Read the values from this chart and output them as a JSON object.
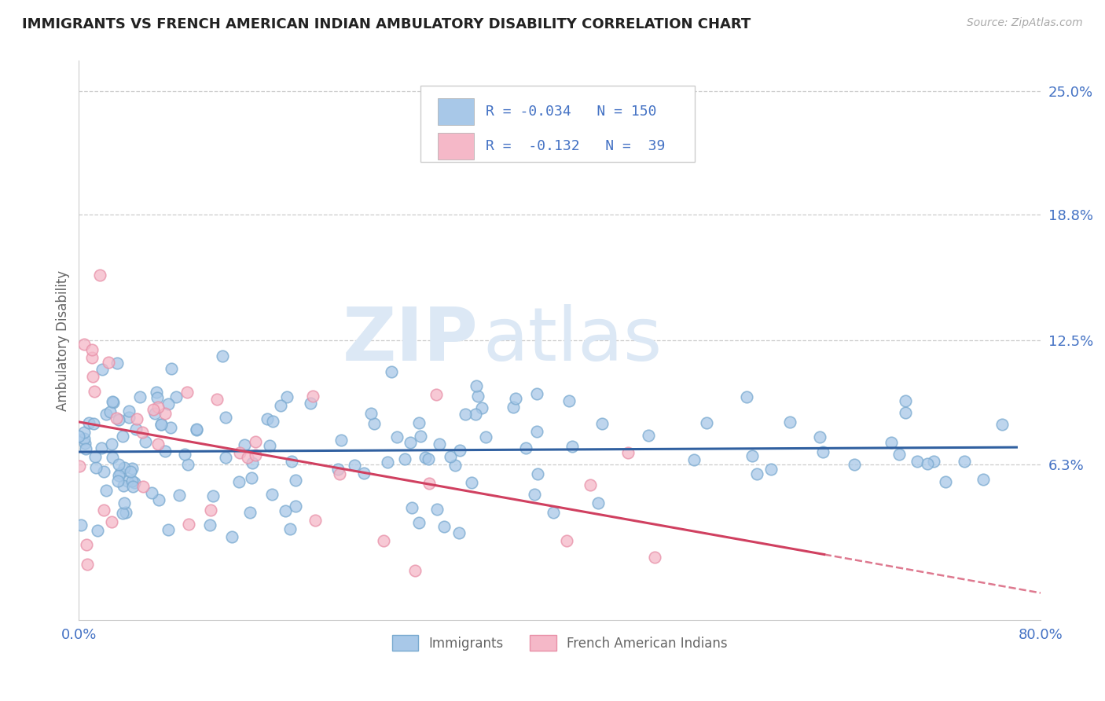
{
  "title": "IMMIGRANTS VS FRENCH AMERICAN INDIAN AMBULATORY DISABILITY CORRELATION CHART",
  "source_text": "Source: ZipAtlas.com",
  "ylabel": "Ambulatory Disability",
  "x_min": 0.0,
  "x_max": 0.8,
  "y_min": -0.015,
  "y_max": 0.265,
  "y_ticks": [
    0.063,
    0.125,
    0.188,
    0.25
  ],
  "y_tick_labels": [
    "6.3%",
    "12.5%",
    "18.8%",
    "25.0%"
  ],
  "x_ticks": [
    0.0,
    0.8
  ],
  "x_tick_labels": [
    "0.0%",
    "80.0%"
  ],
  "watermark_zip": "ZIP",
  "watermark_atlas": "atlas",
  "blue_color": "#a8c8e8",
  "blue_edge_color": "#7aaad0",
  "pink_color": "#f5b8c8",
  "pink_edge_color": "#e890a8",
  "blue_line_color": "#3060a0",
  "pink_line_color": "#d04060",
  "blue_R": -0.034,
  "blue_N": 150,
  "pink_R": -0.132,
  "pink_N": 39,
  "title_color": "#222222",
  "axis_label_color": "#666666",
  "tick_label_color": "#4472c4",
  "grid_color": "#cccccc",
  "background_color": "#ffffff",
  "legend_text_color": "#4472c4",
  "legend_blue_text": "R = -0.034   N = 150",
  "legend_pink_text": "R =  -0.132   N =  39"
}
